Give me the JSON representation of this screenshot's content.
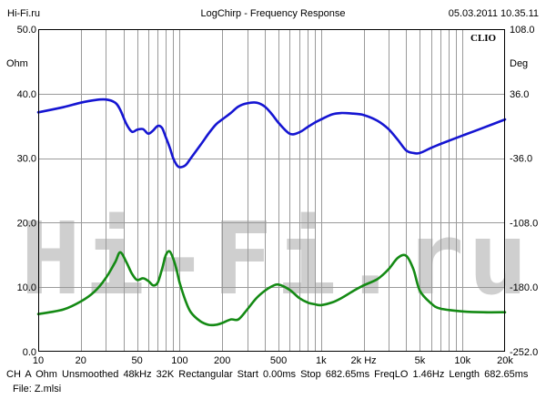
{
  "header": {
    "left": "Hi-Fi.ru",
    "center": "LogChirp - Frequency Response",
    "right": "05.03.2011 10.35.11"
  },
  "brand_label": "CLIO",
  "watermark_text": "Hi-Fi.ru",
  "footer": {
    "line1": "CH A   Ohm   Unsmoothed   48kHz   32K   Rectangular   Start 0.00ms   Stop 682.65ms   FreqLO 1.46Hz   Length 682.65ms",
    "line2": "File: Z.mlsi"
  },
  "colors": {
    "impedance": "#1515d2",
    "phase": "#148a14",
    "grid": "#9a9a9a",
    "watermark": "#cfcfcf"
  },
  "chart_data": {
    "type": "line",
    "x_scale": "log",
    "xlim": [
      10,
      20000
    ],
    "x_tick_values": [
      10,
      20,
      50,
      100,
      200,
      500,
      1000,
      2000,
      5000,
      10000,
      20000
    ],
    "x_tick_labels": [
      "10",
      "20",
      "50",
      "100",
      "200",
      "500",
      "1k",
      "2k Hz",
      "5k",
      "10k",
      "20k"
    ],
    "y_left": {
      "label": "Ohm",
      "lim": [
        0,
        50
      ],
      "tick_values": [
        0,
        10,
        20,
        30,
        40,
        50
      ],
      "tick_labels": [
        "0.0",
        "10.0",
        "20.0",
        "30.0",
        "40.0",
        "50.0"
      ]
    },
    "y_right": {
      "label": "Deg",
      "lim": [
        -252,
        108
      ],
      "tick_values": [
        108,
        36,
        -36,
        -108,
        -180,
        -252
      ],
      "tick_labels": [
        "108.0",
        "36.0",
        "-36.0",
        "-108.0",
        "-180.0",
        "-252.0"
      ]
    },
    "grid": true,
    "series": [
      {
        "axis": "left",
        "color": "#1515d2",
        "x": [
          10,
          15,
          20,
          25,
          30,
          35,
          38,
          42,
          46,
          50,
          55,
          60,
          65,
          70,
          75,
          80,
          85,
          90,
          95,
          100,
          110,
          120,
          140,
          160,
          180,
          200,
          230,
          260,
          300,
          350,
          400,
          450,
          500,
          600,
          700,
          800,
          900,
          1000,
          1200,
          1400,
          1700,
          2000,
          2500,
          3000,
          3500,
          4000,
          4500,
          5000,
          6000,
          7000,
          10000,
          14000,
          20000
        ],
        "y": [
          37.1,
          37.9,
          38.6,
          39.0,
          39.1,
          38.6,
          37.5,
          35.3,
          34.1,
          34.4,
          34.5,
          33.8,
          34.3,
          35.0,
          34.7,
          33.2,
          31.7,
          30.0,
          29.0,
          28.6,
          28.9,
          30.0,
          32.0,
          33.8,
          35.2,
          36.0,
          37.0,
          38.0,
          38.5,
          38.6,
          38.0,
          36.8,
          35.5,
          33.8,
          34.0,
          34.8,
          35.5,
          36.0,
          36.8,
          37.0,
          36.9,
          36.7,
          35.8,
          34.5,
          32.8,
          31.2,
          30.8,
          30.8,
          31.6,
          32.2,
          33.5,
          34.7,
          36.0
        ]
      },
      {
        "axis": "right",
        "color": "#148a14",
        "x": [
          10,
          15,
          20,
          25,
          30,
          35,
          38,
          42,
          46,
          50,
          55,
          60,
          65,
          70,
          75,
          80,
          85,
          90,
          95,
          100,
          110,
          120,
          140,
          160,
          180,
          200,
          230,
          260,
          300,
          350,
          400,
          450,
          500,
          600,
          700,
          800,
          900,
          1000,
          1200,
          1400,
          1700,
          2000,
          2500,
          3000,
          3500,
          4000,
          4500,
          5000,
          6000,
          7000,
          10000,
          14000,
          20000
        ],
        "y": [
          -210,
          -205,
          -196,
          -185,
          -170,
          -152,
          -141,
          -152,
          -165,
          -172,
          -170,
          -173,
          -178,
          -175,
          -160,
          -144,
          -140,
          -148,
          -160,
          -175,
          -195,
          -208,
          -218,
          -222,
          -222,
          -220,
          -216,
          -216,
          -205,
          -192,
          -184,
          -179,
          -177,
          -183,
          -192,
          -197,
          -199,
          -200,
          -197,
          -192,
          -184,
          -178,
          -171,
          -160,
          -147,
          -145,
          -160,
          -184,
          -198,
          -204,
          -207,
          -208,
          -208
        ]
      }
    ]
  }
}
